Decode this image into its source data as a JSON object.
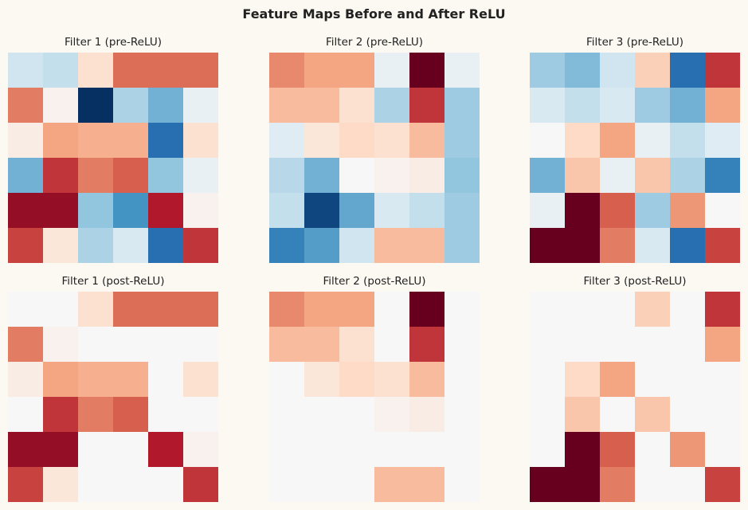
{
  "figure": {
    "title": "Feature Maps Before and After ReLU"
  },
  "chart_data": [
    {
      "type": "heatmap",
      "title": "Filter 1 (pre-ReLU)",
      "colormap": "RdBu_r",
      "vmin": -2.5,
      "vmax": 2.5,
      "values": [
        [
          -0.5,
          -0.6,
          0.4,
          1.4,
          1.4,
          1.4
        ],
        [
          1.3,
          0.1,
          -2.5,
          -0.8,
          -1.2,
          -0.2
        ],
        [
          0.2,
          1.0,
          0.9,
          0.9,
          -1.9,
          0.4
        ],
        [
          -1.2,
          1.8,
          1.3,
          1.5,
          -1.0,
          -0.2
        ],
        [
          2.2,
          2.2,
          -1.0,
          -1.5,
          2.0,
          0.1
        ],
        [
          1.7,
          0.3,
          -0.8,
          -0.4,
          -1.9,
          1.8
        ]
      ]
    },
    {
      "type": "heatmap",
      "title": "Filter 2 (pre-ReLU)",
      "colormap": "RdBu_r",
      "vmin": -2.5,
      "vmax": 2.5,
      "values": [
        [
          1.2,
          1.0,
          1.0,
          -0.2,
          2.5,
          -0.2
        ],
        [
          0.8,
          0.8,
          0.4,
          -0.8,
          1.8,
          -0.9
        ],
        [
          -0.3,
          0.3,
          0.5,
          0.4,
          0.8,
          -0.9
        ],
        [
          -0.7,
          -1.2,
          0.0,
          0.1,
          0.2,
          -1.0
        ],
        [
          -0.6,
          -2.3,
          -1.3,
          -0.4,
          -0.6,
          -0.9
        ],
        [
          -1.7,
          -1.4,
          -0.5,
          0.8,
          0.8,
          -0.9
        ]
      ]
    },
    {
      "type": "heatmap",
      "title": "Filter 3 (pre-ReLU)",
      "colormap": "RdBu_r",
      "vmin": -2.5,
      "vmax": 2.5,
      "values": [
        [
          -0.9,
          -1.1,
          -0.5,
          0.6,
          -1.9,
          1.8
        ],
        [
          -0.4,
          -0.6,
          -0.4,
          -0.9,
          -1.2,
          1.0
        ],
        [
          0.0,
          0.5,
          1.0,
          -0.2,
          -0.6,
          -0.3
        ],
        [
          -1.2,
          0.7,
          -0.2,
          0.7,
          -0.8,
          -1.7
        ],
        [
          -0.2,
          2.5,
          1.5,
          -0.9,
          1.1,
          0.0
        ],
        [
          2.5,
          2.5,
          1.3,
          -0.4,
          -1.9,
          1.7
        ]
      ]
    },
    {
      "type": "heatmap",
      "title": "Filter 1 (post-ReLU)",
      "colormap": "RdBu_r",
      "vmin": -2.5,
      "vmax": 2.5,
      "values": [
        [
          0.0,
          0.0,
          0.4,
          1.4,
          1.4,
          1.4
        ],
        [
          1.3,
          0.1,
          0.0,
          0.0,
          0.0,
          0.0
        ],
        [
          0.2,
          1.0,
          0.9,
          0.9,
          0.0,
          0.4
        ],
        [
          0.0,
          1.8,
          1.3,
          1.5,
          0.0,
          0.0
        ],
        [
          2.2,
          2.2,
          0.0,
          0.0,
          2.0,
          0.1
        ],
        [
          1.7,
          0.3,
          0.0,
          0.0,
          0.0,
          1.8
        ]
      ]
    },
    {
      "type": "heatmap",
      "title": "Filter 2 (post-ReLU)",
      "colormap": "RdBu_r",
      "vmin": -2.5,
      "vmax": 2.5,
      "values": [
        [
          1.2,
          1.0,
          1.0,
          0.0,
          2.5,
          0.0
        ],
        [
          0.8,
          0.8,
          0.4,
          0.0,
          1.8,
          0.0
        ],
        [
          0.0,
          0.3,
          0.5,
          0.4,
          0.8,
          0.0
        ],
        [
          0.0,
          0.0,
          0.0,
          0.1,
          0.2,
          0.0
        ],
        [
          0.0,
          0.0,
          0.0,
          0.0,
          0.0,
          0.0
        ],
        [
          0.0,
          0.0,
          0.0,
          0.8,
          0.8,
          0.0
        ]
      ]
    },
    {
      "type": "heatmap",
      "title": "Filter 3 (post-ReLU)",
      "colormap": "RdBu_r",
      "vmin": -2.5,
      "vmax": 2.5,
      "values": [
        [
          0.0,
          0.0,
          0.0,
          0.6,
          0.0,
          1.8
        ],
        [
          0.0,
          0.0,
          0.0,
          0.0,
          0.0,
          1.0
        ],
        [
          0.0,
          0.5,
          1.0,
          0.0,
          0.0,
          0.0
        ],
        [
          0.0,
          0.7,
          0.0,
          0.7,
          0.0,
          0.0
        ],
        [
          0.0,
          2.5,
          1.5,
          0.0,
          1.1,
          0.0
        ],
        [
          2.5,
          2.5,
          1.3,
          0.0,
          0.0,
          1.7
        ]
      ]
    }
  ]
}
